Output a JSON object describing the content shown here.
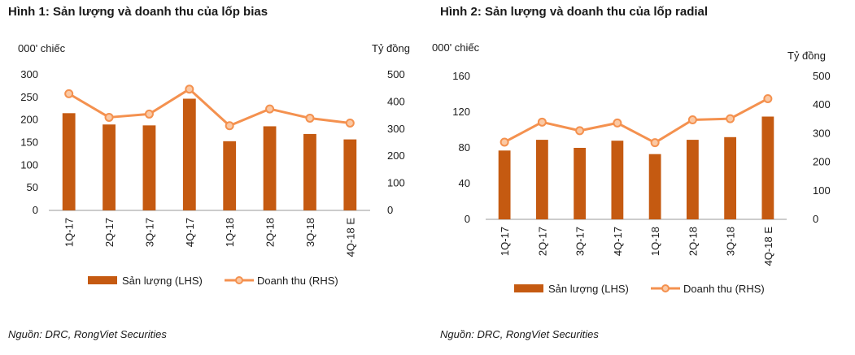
{
  "colors": {
    "bar": "#C55A11",
    "line": "#F4914F",
    "marker_fill": "#FBC9A4",
    "axis": "#999999"
  },
  "charts": [
    {
      "title": "Hình 1: Sản lượng và doanh thu của lốp bias",
      "left_unit": "000' chiếc",
      "right_unit": "Tỷ đồng",
      "source": "Nguồn: DRC, RongViet Securities",
      "legend": {
        "bar": "Sản lượng (LHS)",
        "line": "Doanh thu (RHS)"
      }
    },
    {
      "title": "Hình 2: Sản lượng và doanh thu của lốp radial",
      "left_unit": "000' chiếc",
      "right_unit": "Tỷ đồng",
      "source": "Nguồn: DRC, RongViet Securities",
      "legend": {
        "bar": "Sản lượng (LHS)",
        "line": "Doanh thu (RHS)"
      }
    }
  ],
  "chart_data": [
    {
      "type": "bar",
      "categories": [
        "1Q-17",
        "2Q-17",
        "3Q-17",
        "4Q-17",
        "1Q-18",
        "2Q-18",
        "3Q-18",
        "4Q-18 E"
      ],
      "series": [
        {
          "name": "Sản lượng (LHS)",
          "type": "bar",
          "axis": "left",
          "values": [
            215,
            190,
            188,
            247,
            153,
            186,
            169,
            157
          ]
        },
        {
          "name": "Doanh thu (RHS)",
          "type": "line",
          "axis": "right",
          "values": [
            430,
            343,
            355,
            447,
            312,
            374,
            340,
            322
          ]
        }
      ],
      "ylim_left": [
        0,
        300
      ],
      "yticks_left": [
        "0",
        "50",
        "100",
        "150",
        "200",
        "250",
        "300"
      ],
      "ylim_right": [
        0,
        500
      ],
      "yticks_right": [
        "0",
        "100",
        "200",
        "300",
        "400",
        "500"
      ],
      "grid": false,
      "legend_position": "bottom"
    },
    {
      "type": "bar",
      "categories": [
        "1Q-17",
        "2Q-17",
        "3Q-17",
        "4Q-17",
        "1Q-18",
        "2Q-18",
        "3Q-18",
        "4Q-18 E"
      ],
      "series": [
        {
          "name": "Sản lượng (LHS)",
          "type": "bar",
          "axis": "left",
          "values": [
            77,
            89,
            80,
            88,
            73,
            89,
            92,
            115
          ]
        },
        {
          "name": "Doanh thu (RHS)",
          "type": "line",
          "axis": "right",
          "values": [
            270,
            340,
            310,
            337,
            268,
            348,
            352,
            422
          ]
        }
      ],
      "ylim_left": [
        0,
        160
      ],
      "yticks_left": [
        "0",
        "40",
        "80",
        "120",
        "160"
      ],
      "ylim_right": [
        0,
        500
      ],
      "yticks_right": [
        "0",
        "100",
        "200",
        "300",
        "400",
        "500"
      ],
      "grid": false,
      "legend_position": "bottom"
    }
  ]
}
